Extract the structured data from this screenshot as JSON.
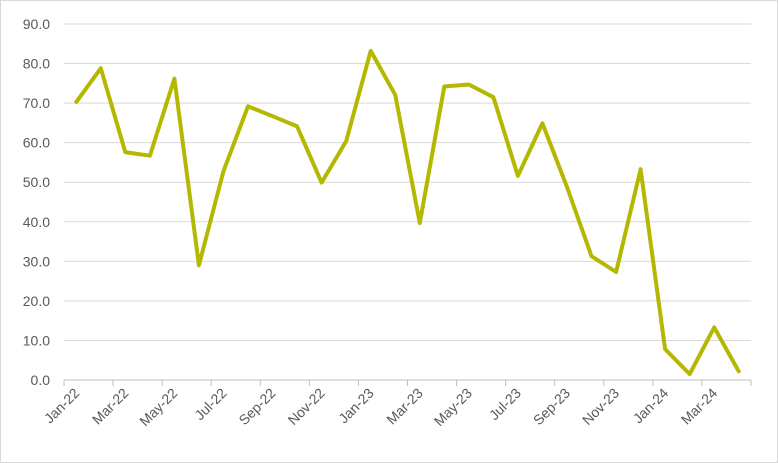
{
  "chart_data": {
    "type": "line",
    "title": "",
    "xlabel": "",
    "ylabel": "",
    "ylim": [
      0,
      90
    ],
    "y_ticks": [
      "0.0",
      "10.0",
      "20.0",
      "30.0",
      "40.0",
      "50.0",
      "60.0",
      "70.0",
      "80.0",
      "90.0"
    ],
    "x_tick_labels": [
      "Jan-22",
      "Mar-22",
      "May-22",
      "Jul-22",
      "Sep-22",
      "Nov-22",
      "Jan-23",
      "Mar-23",
      "May-23",
      "Jul-23",
      "Sep-23",
      "Nov-23",
      "Jan-24",
      "Mar-24"
    ],
    "grid": true,
    "legend": "none",
    "categories": [
      "Jan-22",
      "Feb-22",
      "Mar-22",
      "Apr-22",
      "May-22",
      "Jun-22",
      "Jul-22",
      "Aug-22",
      "Sep-22",
      "Oct-22",
      "Nov-22",
      "Dec-22",
      "Jan-23",
      "Feb-23",
      "Mar-23",
      "Apr-23",
      "May-23",
      "Jun-23",
      "Jul-23",
      "Aug-23",
      "Sep-23",
      "Oct-23",
      "Nov-23",
      "Dec-23",
      "Jan-24",
      "Feb-24",
      "Mar-24",
      "Apr-24"
    ],
    "series": [
      {
        "color": "#b5b800",
        "values": [
          70.3,
          78.8,
          57.6,
          56.7,
          76.2,
          29.0,
          52.8,
          69.2,
          66.7,
          64.1,
          49.9,
          60.4,
          83.2,
          72.1,
          39.7,
          74.2,
          74.7,
          71.5,
          51.6,
          64.9,
          48.8,
          31.3,
          27.3,
          53.3,
          7.8,
          1.5,
          13.3,
          2.2
        ]
      }
    ]
  }
}
